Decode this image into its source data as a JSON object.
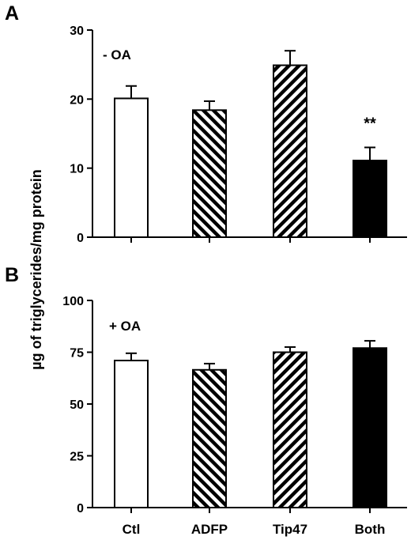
{
  "shared_ylabel": "µg of triglycerides/mg protein",
  "categories": [
    "Ctl",
    "ADFP",
    "Tip47",
    "Both"
  ],
  "fill_styles": [
    "white",
    "hatch-backslash",
    "hatch-slash",
    "black"
  ],
  "chart_data": [
    {
      "type": "bar",
      "panel": "A",
      "condition_label": "- OA",
      "categories": [
        "Ctl",
        "ADFP",
        "Tip47",
        "Both"
      ],
      "values": [
        20.1,
        18.4,
        24.9,
        11.1
      ],
      "errors": [
        1.8,
        1.3,
        2.1,
        1.9
      ],
      "ylim": [
        0,
        30
      ],
      "yticks": [
        0,
        10,
        20,
        30
      ],
      "annotations": [
        {
          "category": "Both",
          "text": "**"
        }
      ],
      "ylabel": "µg of triglycerides/mg protein"
    },
    {
      "type": "bar",
      "panel": "B",
      "condition_label": "+ OA",
      "categories": [
        "Ctl",
        "ADFP",
        "Tip47",
        "Both"
      ],
      "values": [
        71,
        66.5,
        75,
        77
      ],
      "errors": [
        3.5,
        3,
        2.5,
        3.5
      ],
      "ylim": [
        0,
        100
      ],
      "yticks": [
        0,
        25,
        50,
        75,
        100
      ],
      "annotations": [],
      "ylabel": "µg of triglycerides/mg protein"
    }
  ]
}
